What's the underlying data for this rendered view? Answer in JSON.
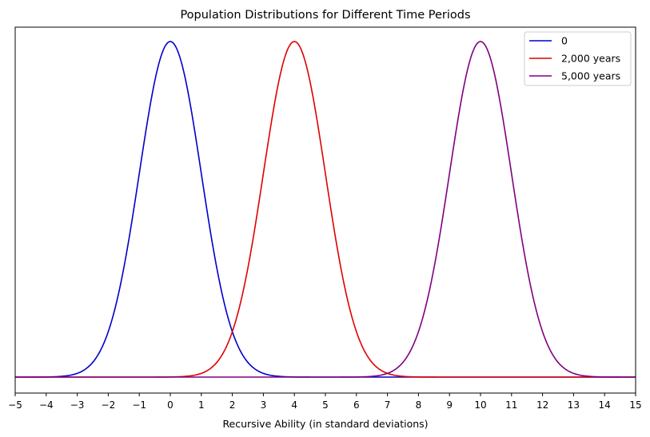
{
  "chart_data": {
    "type": "line",
    "title": "Population Distributions for Different Time Periods",
    "xlabel": "Recursive Ability (in standard deviations)",
    "ylabel": "",
    "xlim": [
      -5,
      15
    ],
    "xticks": [
      "−5",
      "−4",
      "−3",
      "−2",
      "−1",
      "0",
      "1",
      "2",
      "3",
      "4",
      "5",
      "6",
      "7",
      "8",
      "9",
      "10",
      "11",
      "12",
      "13",
      "14",
      "15"
    ],
    "y_ticks_shown": false,
    "grid": false,
    "legend_position": "top-right",
    "distribution": "normal",
    "series": [
      {
        "name": "0",
        "mean": 0,
        "std": 1,
        "color": "#0000cc"
      },
      {
        "name": "2,000 years",
        "mean": 4,
        "std": 1,
        "color": "#e00000"
      },
      {
        "name": "5,000 years",
        "mean": 10,
        "std": 1,
        "color": "#800080"
      }
    ]
  }
}
